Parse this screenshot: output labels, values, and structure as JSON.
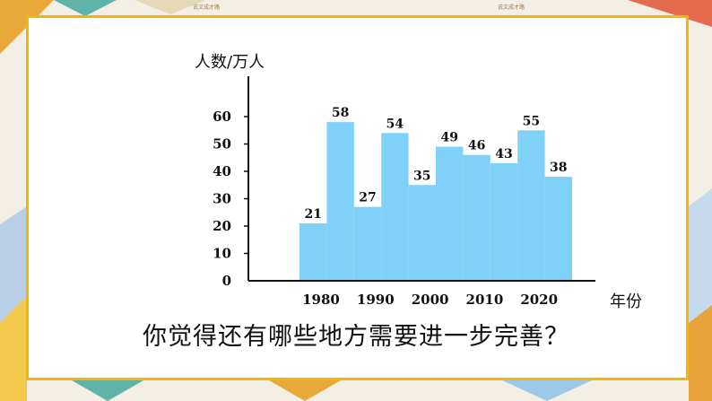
{
  "header": {
    "note_left": "说文成才路",
    "note_right": "说文成才路"
  },
  "chart_data": {
    "type": "bar",
    "ylabel": "人数/万人",
    "xlabel": "年份",
    "x_ticks": [
      "1980",
      "1990",
      "2000",
      "2010",
      "2020"
    ],
    "y_ticks": [
      "0",
      "10",
      "20",
      "30",
      "40",
      "50",
      "60"
    ],
    "ylim": [
      0,
      60
    ],
    "values": [
      21,
      58,
      27,
      54,
      35,
      49,
      46,
      43,
      55,
      38
    ],
    "grid": false,
    "legend": "none"
  },
  "question": "你觉得还有哪些地方需要进一步完善？",
  "colors": {
    "bar": "#7fd1f7",
    "frame": "#f2b705",
    "axis": "#111111"
  }
}
